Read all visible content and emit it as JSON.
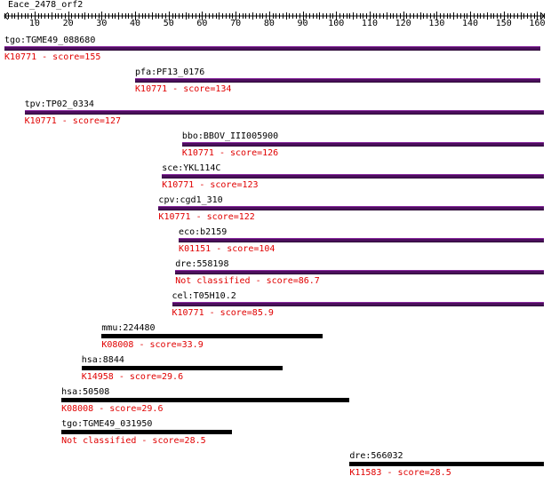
{
  "ruler": {
    "title": "Eace_2478_orf2",
    "min": 1,
    "max": 162,
    "ticks": [
      "10",
      "20",
      "30",
      "40",
      "50",
      "60",
      "70",
      "80",
      "90",
      "100",
      "110",
      "120",
      "130",
      "140",
      "150",
      "160"
    ]
  },
  "colors": {
    "bar_classified": "#4b0f5c",
    "bar_other": "#000000",
    "score_text": "#e00000"
  },
  "hits": [
    {
      "name": "tgo:TGME49_088680",
      "label": "K10771 - score=155",
      "start": 1,
      "end": 161,
      "color": "purple"
    },
    {
      "name": "pfa:PF13_0176",
      "label": "K10771 - score=134",
      "start": 40,
      "end": 161,
      "color": "purple"
    },
    {
      "name": "tpv:TP02_0334",
      "label": "K10771 - score=127",
      "start": 7,
      "end": 162,
      "color": "purple"
    },
    {
      "name": "bbo:BBOV_III005900",
      "label": "K10771 - score=126",
      "start": 54,
      "end": 162,
      "color": "purple"
    },
    {
      "name": "sce:YKL114C",
      "label": "K10771 - score=123",
      "start": 48,
      "end": 162,
      "color": "purple"
    },
    {
      "name": "cpv:cgd1_310",
      "label": "K10771 - score=122",
      "start": 47,
      "end": 162,
      "color": "purple"
    },
    {
      "name": "eco:b2159",
      "label": "K01151 - score=104",
      "start": 53,
      "end": 162,
      "color": "purple"
    },
    {
      "name": "dre:558198",
      "label": "Not classified - score=86.7",
      "start": 52,
      "end": 162,
      "color": "purple"
    },
    {
      "name": "cel:T05H10.2",
      "label": "K10771 - score=85.9",
      "start": 51,
      "end": 162,
      "color": "purple"
    },
    {
      "name": "mmu:224480",
      "label": "K08008 - score=33.9",
      "start": 30,
      "end": 96,
      "color": "black"
    },
    {
      "name": "hsa:8844",
      "label": "K14958 - score=29.6",
      "start": 24,
      "end": 84,
      "color": "black"
    },
    {
      "name": "hsa:50508",
      "label": "K08008 - score=29.6",
      "start": 18,
      "end": 104,
      "color": "black"
    },
    {
      "name": "tgo:TGME49_031950",
      "label": "Not classified - score=28.5",
      "start": 18,
      "end": 69,
      "color": "black"
    },
    {
      "name": "dre:566032",
      "label": "K11583 - score=28.5",
      "start": 104,
      "end": 162,
      "color": "black"
    }
  ]
}
